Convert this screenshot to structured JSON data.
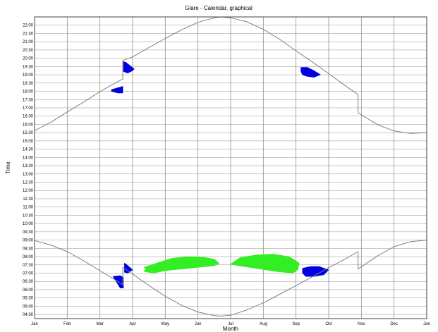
{
  "chart_data": {
    "type": "line",
    "title": "Glare - Calendar, graphical",
    "xlabel": "Month",
    "ylabel": "Time",
    "xlim": [
      0,
      12
    ],
    "ylim": [
      "04:15",
      "22:30"
    ],
    "x_ticks": [
      "Jan",
      "Feb",
      "Mar",
      "Apr",
      "May",
      "Jun",
      "Jul",
      "Aug",
      "Sep",
      "Oct",
      "Nov",
      "Dec",
      "Jan"
    ],
    "y_ticks": [
      "04:30",
      "05:00",
      "05:30",
      "06:00",
      "06:30",
      "07:00",
      "07:30",
      "08:00",
      "08:30",
      "09:00",
      "09:30",
      "10:00",
      "10:30",
      "11:00",
      "11:30",
      "12:00",
      "12:30",
      "13:00",
      "13:30",
      "14:00",
      "14:30",
      "15:00",
      "15:30",
      "16:00",
      "16:30",
      "17:00",
      "17:30",
      "18:00",
      "18:30",
      "19:00",
      "19:30",
      "20:00",
      "20:30",
      "21:00",
      "21:30",
      "22:00"
    ],
    "grid": true,
    "colors": {
      "curve": "#808080",
      "glare_blue": "#0000e0",
      "glare_green": "#33ee22",
      "grid": "#909090"
    },
    "series": [
      {
        "role": "sunset",
        "x": [
          0.0,
          0.5,
          1.0,
          1.5,
          2.0,
          2.5,
          2.7,
          2.7,
          3.0,
          3.5,
          4.0,
          4.5,
          5.0,
          5.5,
          5.7,
          6.0,
          6.5,
          7.0,
          7.5,
          8.0,
          8.5,
          9.0,
          9.5,
          9.9,
          9.9,
          10.5,
          11.0,
          11.5,
          12.0
        ],
        "y": [
          15.62,
          16.13,
          16.75,
          17.35,
          17.98,
          18.53,
          18.75,
          19.87,
          20.08,
          20.65,
          21.2,
          21.72,
          22.17,
          22.45,
          22.5,
          22.45,
          22.2,
          21.75,
          21.15,
          20.45,
          19.78,
          19.07,
          18.35,
          17.8,
          16.7,
          15.98,
          15.6,
          15.45,
          15.5
        ]
      },
      {
        "role": "sunrise",
        "x": [
          0.0,
          0.5,
          1.0,
          1.5,
          2.0,
          2.5,
          2.7,
          2.7,
          3.0,
          3.5,
          4.0,
          4.5,
          5.0,
          5.5,
          5.7,
          6.0,
          6.5,
          7.0,
          7.5,
          8.0,
          8.5,
          9.0,
          9.5,
          9.9,
          9.9,
          10.5,
          11.0,
          11.5,
          12.0
        ],
        "y": [
          8.97,
          8.7,
          8.3,
          7.75,
          7.15,
          6.55,
          6.3,
          7.35,
          6.95,
          6.25,
          5.6,
          5.05,
          4.65,
          4.43,
          4.4,
          4.45,
          4.78,
          5.2,
          5.72,
          6.25,
          6.78,
          7.33,
          7.85,
          8.3,
          7.25,
          8.05,
          8.6,
          8.9,
          9.0
        ]
      }
    ],
    "glare_regions": [
      {
        "color": "blue",
        "x": [
          2.35,
          2.7,
          2.7,
          2.55,
          2.35
        ],
        "y": [
          18.1,
          18.3,
          17.9,
          17.9,
          18.0
        ]
      },
      {
        "color": "blue",
        "x": [
          2.72,
          2.8,
          3.05,
          3.0,
          2.85,
          2.72
        ],
        "y": [
          19.8,
          19.75,
          19.35,
          19.25,
          19.1,
          19.2
        ]
      },
      {
        "color": "blue",
        "x": [
          2.4,
          2.62,
          2.72,
          2.72,
          2.62
        ],
        "y": [
          6.8,
          6.85,
          6.75,
          6.1,
          6.1
        ]
      },
      {
        "color": "blue",
        "x": [
          2.75,
          2.8,
          3.0,
          2.85,
          2.75
        ],
        "y": [
          7.6,
          7.55,
          7.2,
          7.0,
          7.05
        ]
      },
      {
        "color": "blue",
        "x": [
          8.15,
          8.35,
          8.55,
          8.75,
          8.55,
          8.35,
          8.2,
          8.15
        ],
        "y": [
          19.45,
          19.45,
          19.25,
          19.0,
          18.85,
          18.9,
          19.0,
          19.2
        ]
      },
      {
        "color": "blue",
        "x": [
          8.2,
          8.45,
          8.7,
          9.0,
          8.85,
          8.55,
          8.3,
          8.2
        ],
        "y": [
          7.3,
          7.4,
          7.4,
          7.2,
          6.9,
          6.8,
          6.8,
          7.0
        ]
      },
      {
        "color": "green",
        "x": [
          3.35,
          3.8,
          4.2,
          4.7,
          5.2,
          5.5,
          5.65,
          5.5,
          5.0,
          4.5,
          4.0,
          3.65,
          3.35,
          3.4
        ],
        "y": [
          7.35,
          7.65,
          7.9,
          8.0,
          7.95,
          7.85,
          7.6,
          7.45,
          7.35,
          7.25,
          7.15,
          7.0,
          7.1,
          7.25
        ]
      },
      {
        "color": "green",
        "x": [
          6.0,
          6.3,
          6.8,
          7.3,
          7.8,
          8.1,
          8.05,
          7.9,
          7.4,
          6.9,
          6.4,
          6.1,
          6.0
        ],
        "y": [
          7.55,
          7.95,
          8.1,
          8.15,
          8.0,
          7.6,
          7.2,
          7.0,
          7.1,
          7.25,
          7.4,
          7.5,
          7.55
        ]
      }
    ]
  }
}
